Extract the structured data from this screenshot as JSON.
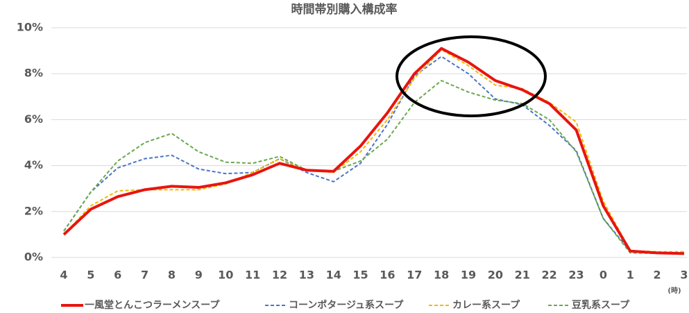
{
  "chart_data": {
    "type": "line",
    "title": "時間帯別購入構成率",
    "x_unit_label": "(時)",
    "categories": [
      "4",
      "5",
      "6",
      "7",
      "8",
      "9",
      "10",
      "11",
      "12",
      "13",
      "14",
      "15",
      "16",
      "17",
      "18",
      "19",
      "20",
      "21",
      "22",
      "23",
      "0",
      "1",
      "2",
      "3"
    ],
    "ylim": [
      0,
      10
    ],
    "yticks": [
      {
        "value": 0,
        "label": "0%"
      },
      {
        "value": 2,
        "label": "2%"
      },
      {
        "value": 4,
        "label": "4%"
      },
      {
        "value": 6,
        "label": "6%"
      },
      {
        "value": 8,
        "label": "8%"
      },
      {
        "value": 10,
        "label": "10%"
      }
    ],
    "grid": true,
    "legend": "bottom",
    "series": [
      {
        "name": "一風堂とんこつラーメンスープ",
        "color": "#e8140f",
        "dashed": false,
        "values": [
          1.0,
          2.1,
          2.65,
          2.95,
          3.1,
          3.05,
          3.25,
          3.6,
          4.1,
          3.8,
          3.75,
          4.85,
          6.3,
          8.0,
          9.1,
          8.5,
          7.7,
          7.3,
          6.7,
          5.55,
          2.25,
          0.28,
          0.2,
          0.17
        ]
      },
      {
        "name": "コーンポタージュ系スープ",
        "color": "#4a74c4",
        "dashed": true,
        "values": [
          1.15,
          2.85,
          3.9,
          4.3,
          4.45,
          3.85,
          3.65,
          3.7,
          4.3,
          3.7,
          3.3,
          4.1,
          5.8,
          7.9,
          8.75,
          8.0,
          6.9,
          6.65,
          5.75,
          4.65,
          1.7,
          0.27,
          0.2,
          0.2
        ]
      },
      {
        "name": "カレー系スープ",
        "color": "#f2b800",
        "dashed": true,
        "values": [
          1.0,
          2.25,
          2.9,
          2.95,
          2.95,
          2.95,
          3.2,
          3.7,
          4.3,
          3.8,
          3.7,
          4.6,
          6.0,
          7.8,
          9.05,
          8.35,
          7.5,
          7.35,
          6.75,
          5.9,
          2.45,
          0.3,
          0.25,
          0.25
        ]
      },
      {
        "name": "豆乳系スープ",
        "color": "#6aa84f",
        "dashed": true,
        "values": [
          1.15,
          2.85,
          4.2,
          5.0,
          5.4,
          4.6,
          4.15,
          4.1,
          4.4,
          3.8,
          3.75,
          4.2,
          5.15,
          6.75,
          7.7,
          7.2,
          6.85,
          6.7,
          6.0,
          4.6,
          1.7,
          0.2,
          0.18,
          0.17
        ]
      }
    ]
  }
}
